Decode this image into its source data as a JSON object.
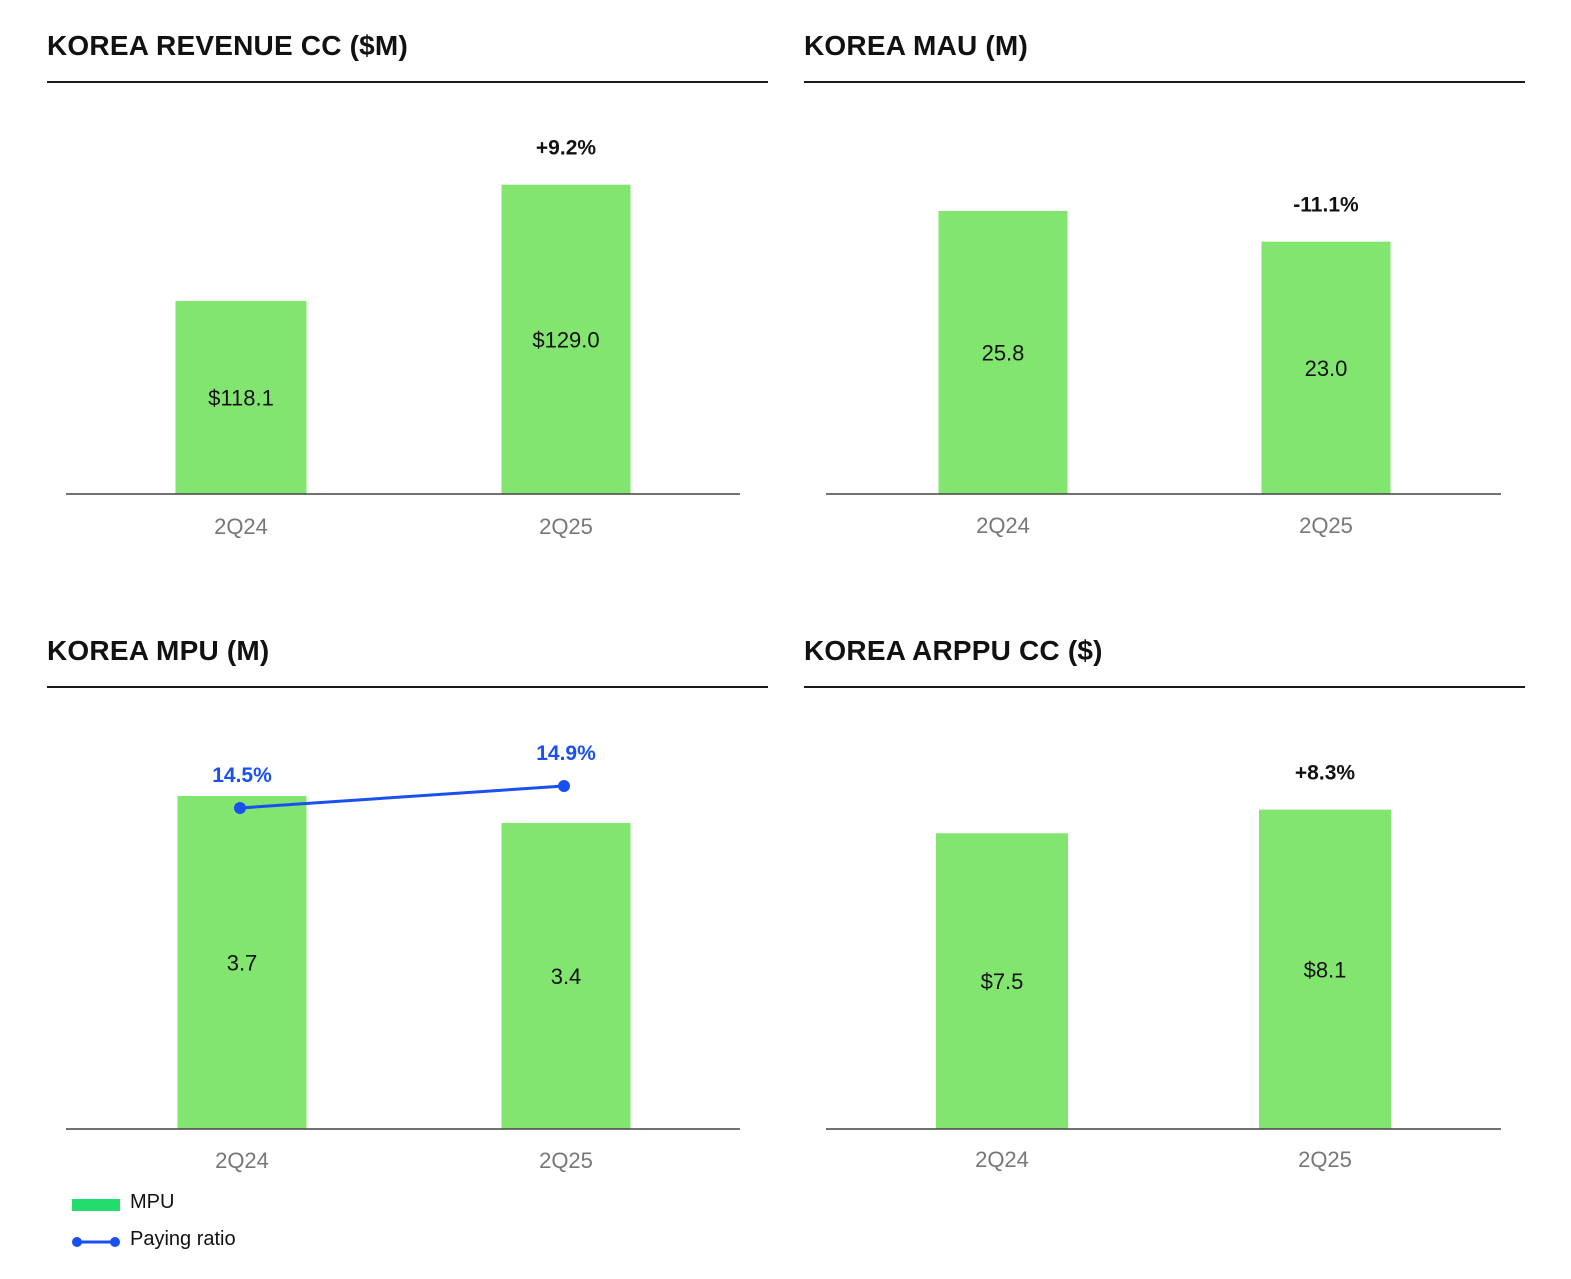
{
  "colors": {
    "bar": "#82e56f",
    "line": "#1a4ff0",
    "axis": "#444444",
    "category_text": "#777777",
    "legend_mpu": "#22dd6e"
  },
  "chart_data": [
    {
      "type": "bar",
      "title": "KOREA REVENUE CC ($M)",
      "xlabel": "",
      "ylabel": "",
      "categories": [
        "2Q24",
        "2Q25"
      ],
      "values": [
        118.1,
        129.0
      ],
      "value_labels": [
        "$118.1",
        "$129.0"
      ],
      "change_label": "+9.2%",
      "ylim": [
        100,
        136
      ],
      "grid": false
    },
    {
      "type": "bar",
      "title": "KOREA MAU (M)",
      "xlabel": "",
      "ylabel": "",
      "categories": [
        "2Q24",
        "2Q25"
      ],
      "values": [
        25.8,
        23.0
      ],
      "value_labels": [
        "25.8",
        "23.0"
      ],
      "change_label": "-11.1%",
      "ylim": [
        0,
        35
      ],
      "grid": false
    },
    {
      "type": "bar",
      "title": "KOREA MPU (M)",
      "xlabel": "",
      "ylabel": "",
      "categories": [
        "2Q24",
        "2Q25"
      ],
      "series": [
        {
          "name": "MPU",
          "type": "bar",
          "values": [
            3.7,
            3.4
          ],
          "value_labels": [
            "3.7",
            "3.4"
          ]
        },
        {
          "name": "Paying ratio",
          "type": "line",
          "values": [
            14.5,
            14.9
          ],
          "value_labels": [
            "14.5%",
            "14.9%"
          ]
        }
      ],
      "ylim": [
        0,
        4.6
      ],
      "grid": false,
      "legend": "bottom-left"
    },
    {
      "type": "bar",
      "title": "KOREA ARPPU CC ($)",
      "xlabel": "",
      "ylabel": "",
      "categories": [
        "2Q24",
        "2Q25"
      ],
      "values": [
        7.5,
        8.1
      ],
      "value_labels": [
        "$7.5",
        "$8.1"
      ],
      "change_label": "+8.3%",
      "ylim": [
        0,
        10.5
      ],
      "grid": false
    }
  ],
  "legend": {
    "items": [
      {
        "label": "MPU",
        "kind": "swatch"
      },
      {
        "label": "Paying ratio",
        "kind": "line"
      }
    ]
  }
}
